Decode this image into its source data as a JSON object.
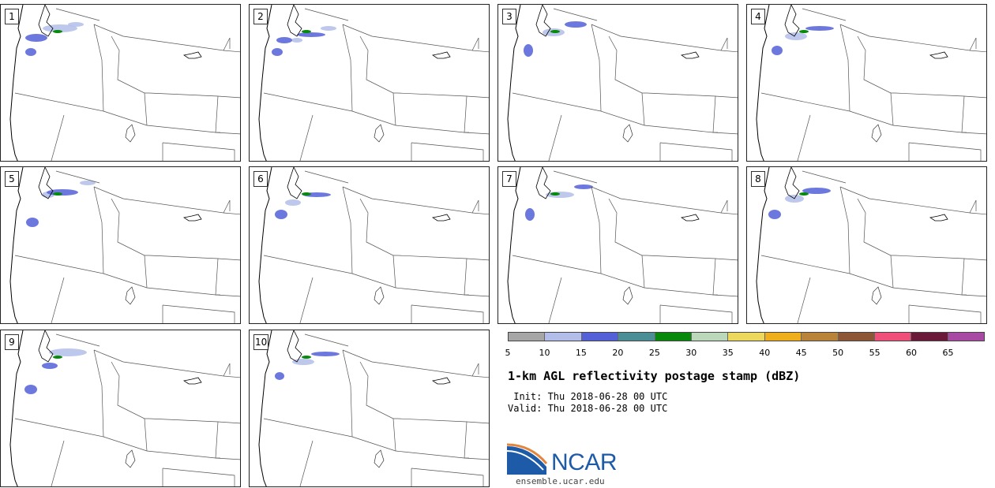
{
  "panels": [
    {
      "label": "1"
    },
    {
      "label": "2"
    },
    {
      "label": "3"
    },
    {
      "label": "4"
    },
    {
      "label": "5"
    },
    {
      "label": "6"
    },
    {
      "label": "7"
    },
    {
      "label": "8"
    },
    {
      "label": "9"
    },
    {
      "label": "10"
    }
  ],
  "colorbar": {
    "ticks": [
      "5",
      "10",
      "15",
      "20",
      "25",
      "30",
      "35",
      "40",
      "45",
      "50",
      "55",
      "60",
      "65"
    ],
    "colors": [
      "#a6a6a6",
      "#b3bde9",
      "#5360d8",
      "#4a8f96",
      "#078a0b",
      "#bcd8bb",
      "#ecd85c",
      "#efae1c",
      "#b9843a",
      "#8d5637",
      "#ef5079",
      "#6a1a38",
      "#a84aa4"
    ]
  },
  "title": "1-km AGL reflectivity postage stamp (dBZ)",
  "init": " Init: Thu 2018-06-28 00 UTC",
  "valid": "Valid: Thu 2018-06-28 00 UTC",
  "logo": {
    "text": "NCAR",
    "colors": [
      "#1d5aa8",
      "#e3863d"
    ]
  },
  "url": "ensemble.ucar.edu"
}
